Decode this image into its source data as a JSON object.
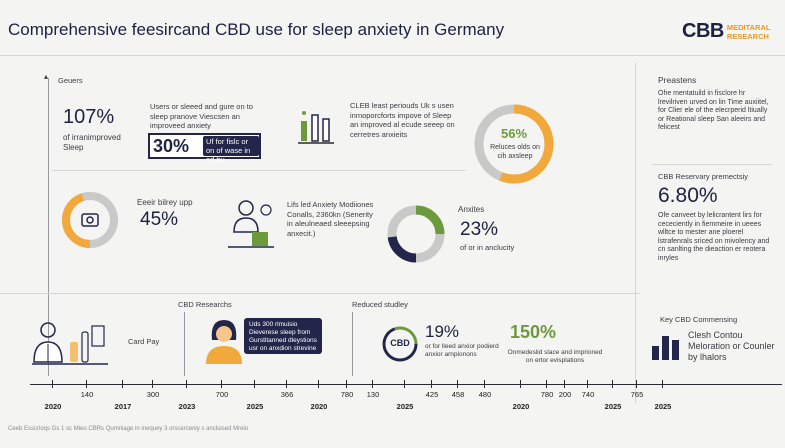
{
  "header": {
    "title": "Comprehensive feesircand CBD use for sleep anxiety in Germany",
    "logo_mark": "CBB",
    "logo_line1": "MEDITARAL",
    "logo_line2": "RESEARCH"
  },
  "section_left_label": "Geuers",
  "stat1": {
    "value": "107%",
    "desc_line1": "of irranimproved",
    "desc_line2": "Sleep"
  },
  "stat2": {
    "desc": "Users or sleeed and gure on to sleep pranove Viescsen an improveed anxiety",
    "value": "30%",
    "box_text": "Uf for fislc or on of wase in ed by"
  },
  "stat3": {
    "desc": "CLEB least periouds Uk s usen inmoporcforts impove of Sleep an improved al ecude seeep on cerretres anxieits"
  },
  "donut_main": {
    "value": "56%",
    "desc": "Reluces olds on cih axsleep",
    "percent": 56
  },
  "stat4": {
    "label": "Eeeir bilrey upp",
    "value": "45%"
  },
  "stat5": {
    "desc": "Lifs led Anxiety Modiiones Conalls, 2360kn (Senerity in aleulneaed sleeepsing anxecit.)"
  },
  "stat6": {
    "label": "Anxites",
    "value": "23%",
    "desc": "of or in anclucity"
  },
  "right": {
    "heading": "Preastens",
    "para": "Ohe mentatuild in fisclore hr lrevilriven urved on lin Time auxiitel, for Clier ele of the elecrperid ltiually or Reational sleep San aleeirs and felicest",
    "stat_label": "CBB Reservary premectsiy",
    "stat_value": "6.80%",
    "stat_desc": "Ofe canveet by lelicrantent lirs for cececiently in fiemmeire in ueees wlltce to mester ane ploerel lstrafenrals sriced on mivolency and cn sanlting the dieaction er reotera inryles"
  },
  "bottom": {
    "card_pay": "Card Pay",
    "cbd_researchs_label": "CBD Researchs",
    "research_box": "Uds 300 rlmuisio Dieverese sleep from Gurstitanned dleystions usr on anxdion strevine",
    "reduced_label": "Reduced studley",
    "cbd_badge": "CBD",
    "pct_19": "19%",
    "pct_19_desc": "or for lleed anxior podierd anxior arnplonons",
    "pct_150": "150%",
    "pct_150_desc": "Onmedeslid slace and imprioned on ertor evisplations",
    "key_label": "Key CBD Commensing",
    "key_desc": "Clesh Contou Meloration or Counler by lhalors"
  },
  "timeline": [
    "2020",
    "140",
    "2017",
    "300",
    "2023",
    "700",
    "2025",
    "366",
    "2020",
    "780",
    "130",
    "2025",
    "425",
    "458",
    "480",
    "2020",
    "780",
    "200",
    "740",
    "2025",
    "765",
    "2025"
  ],
  "footer": "Ceeb Esscrioqs Gs 1 sc Mieo CBRs Qumniage in inequey 3 orscerceniy s ancluised Mreio",
  "colors": {
    "navy": "#23264a",
    "orange": "#f2a93b",
    "green": "#6e9a3e",
    "grey": "#c9c9c9"
  }
}
